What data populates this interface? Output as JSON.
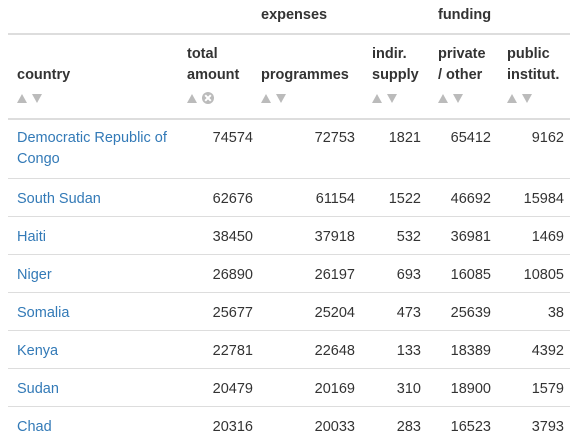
{
  "groups": {
    "expenses": "expenses",
    "funding": "funding"
  },
  "columns": [
    {
      "key": "country",
      "line1": "",
      "line2": "country"
    },
    {
      "key": "total",
      "line1": "total",
      "line2": "amount"
    },
    {
      "key": "programmes",
      "line1": "",
      "line2": "programmes"
    },
    {
      "key": "indir",
      "line1": "indir.",
      "line2": "supply"
    },
    {
      "key": "private",
      "line1": "private",
      "line2": "/ other"
    },
    {
      "key": "public",
      "line1": "public",
      "line2": "institut."
    }
  ],
  "icons": {
    "sort_up": "sort-ascending-icon",
    "sort_down": "sort-descending-icon",
    "clear_sort": "clear-sort-icon"
  },
  "rows": [
    {
      "country": "Democratic Republic of Congo",
      "total": "74574",
      "programmes": "72753",
      "indir": "1821",
      "private": "65412",
      "public": "9162"
    },
    {
      "country": "South Sudan",
      "total": "62676",
      "programmes": "61154",
      "indir": "1522",
      "private": "46692",
      "public": "15984"
    },
    {
      "country": "Haiti",
      "total": "38450",
      "programmes": "37918",
      "indir": "532",
      "private": "36981",
      "public": "1469"
    },
    {
      "country": "Niger",
      "total": "26890",
      "programmes": "26197",
      "indir": "693",
      "private": "16085",
      "public": "10805"
    },
    {
      "country": "Somalia",
      "total": "25677",
      "programmes": "25204",
      "indir": "473",
      "private": "25639",
      "public": "38"
    },
    {
      "country": "Kenya",
      "total": "22781",
      "programmes": "22648",
      "indir": "133",
      "private": "18389",
      "public": "4392"
    },
    {
      "country": "Sudan",
      "total": "20479",
      "programmes": "20169",
      "indir": "310",
      "private": "18900",
      "public": "1579"
    },
    {
      "country": "Chad",
      "total": "20316",
      "programmes": "20033",
      "indir": "283",
      "private": "16523",
      "public": "3793"
    }
  ]
}
